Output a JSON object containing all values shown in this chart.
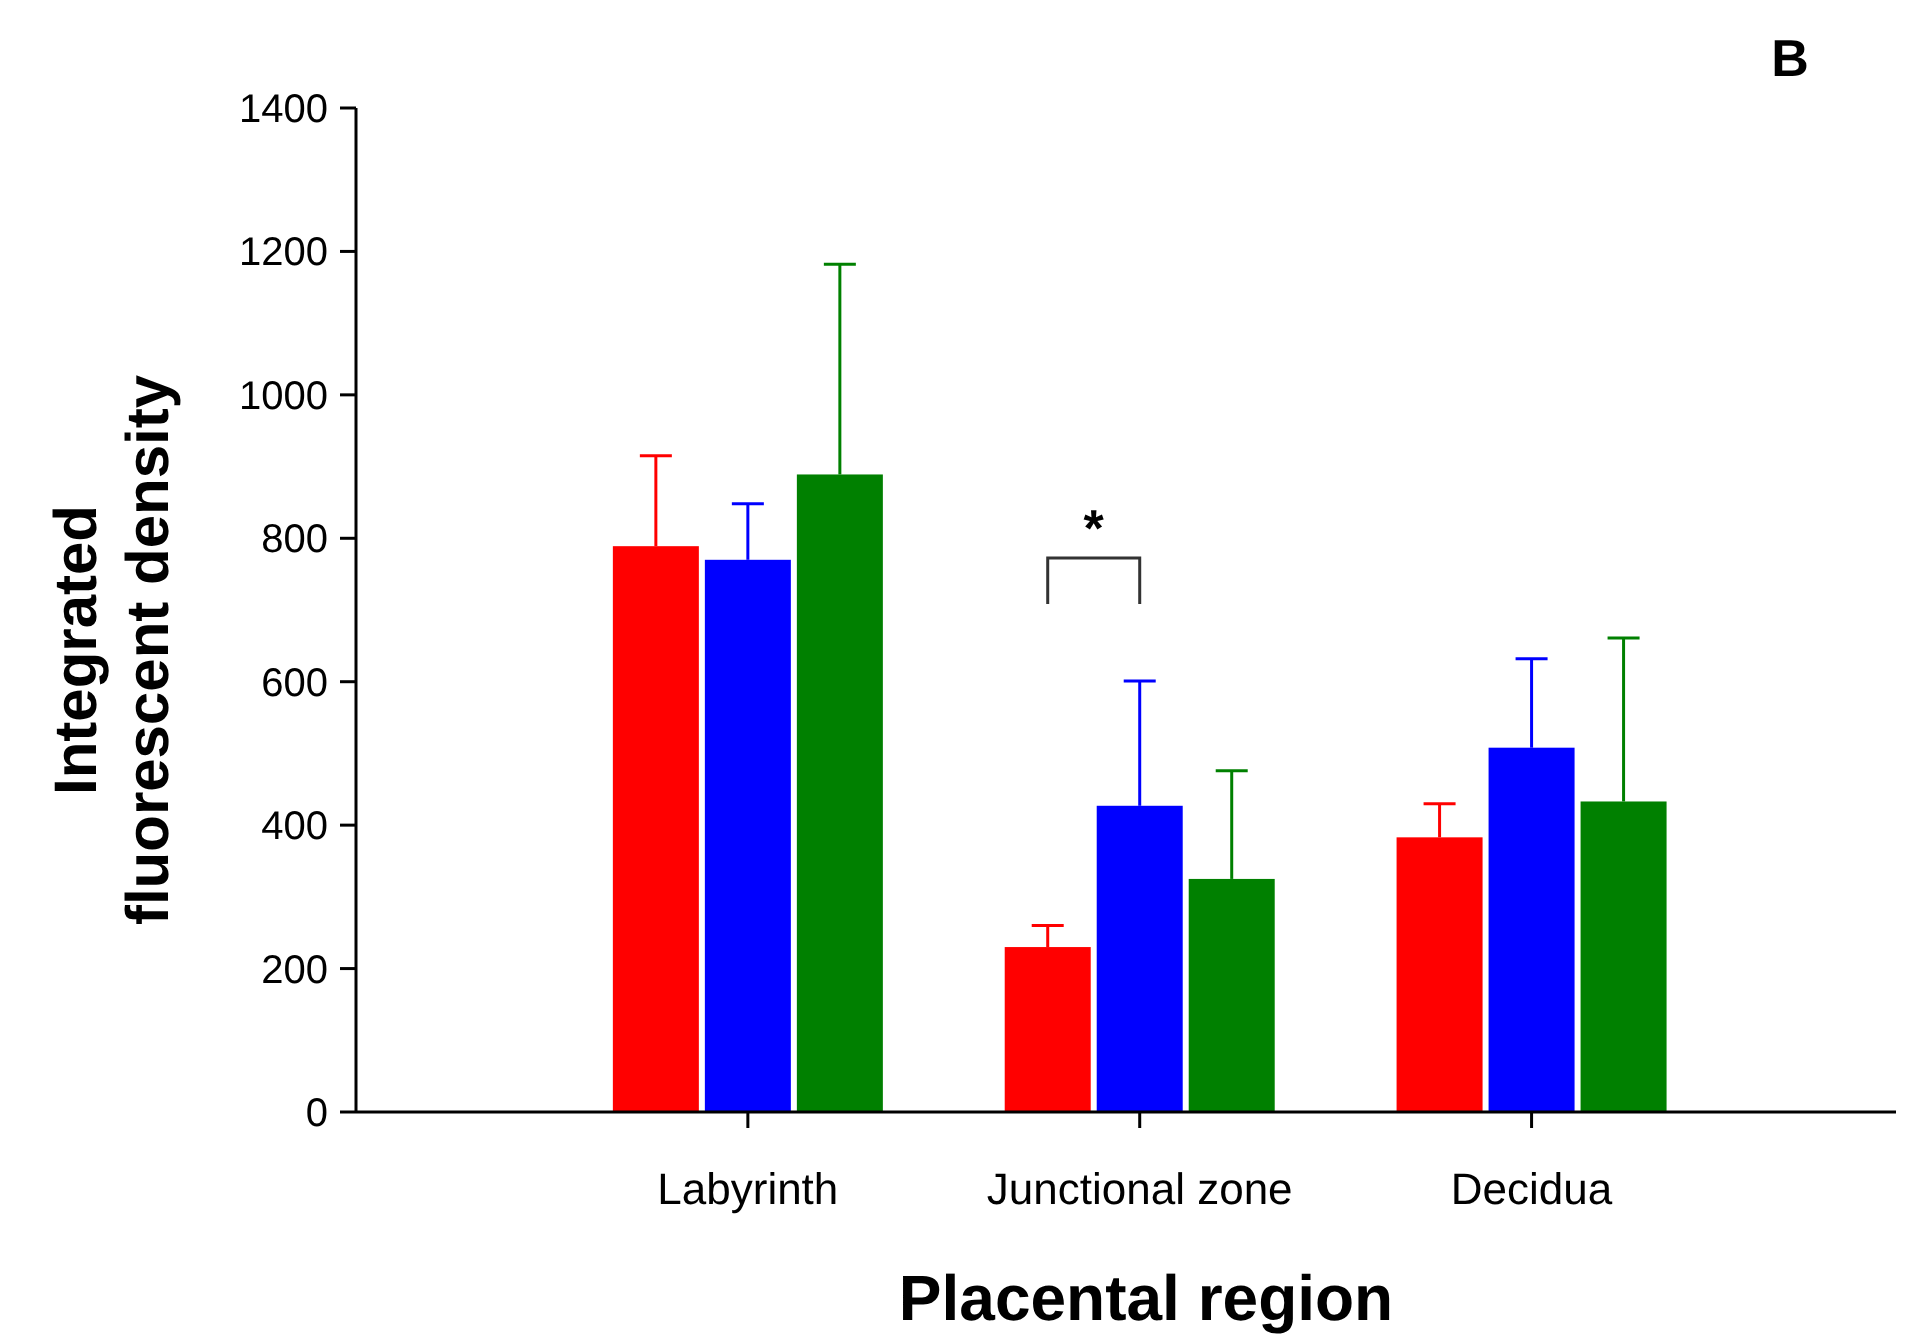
{
  "chart_data": {
    "type": "bar",
    "xlabel": "Placental region",
    "ylabel": "Integrated\nfluorescent density",
    "categories": [
      "Labyrinth",
      "Junctional zone",
      "Decidua"
    ],
    "series": [
      {
        "color": "#ff0000",
        "values": [
          789,
          230,
          383
        ],
        "errors": [
          [
            789,
            915
          ],
          [
            230,
            260
          ],
          [
            383,
            430
          ]
        ]
      },
      {
        "color": "#0000ff",
        "values": [
          770,
          427,
          508
        ],
        "errors": [
          [
            770,
            848
          ],
          [
            427,
            601
          ],
          [
            508,
            632
          ]
        ]
      },
      {
        "color": "#008000",
        "values": [
          889,
          325,
          433
        ],
        "errors": [
          [
            889,
            1182
          ],
          [
            325,
            476
          ],
          [
            433,
            661
          ]
        ]
      }
    ],
    "ylim": [
      0,
      1400
    ],
    "yticks": [
      0,
      200,
      400,
      600,
      800,
      1000,
      1200,
      1400
    ],
    "grid": false,
    "annotations": [
      "B",
      "*"
    ]
  }
}
